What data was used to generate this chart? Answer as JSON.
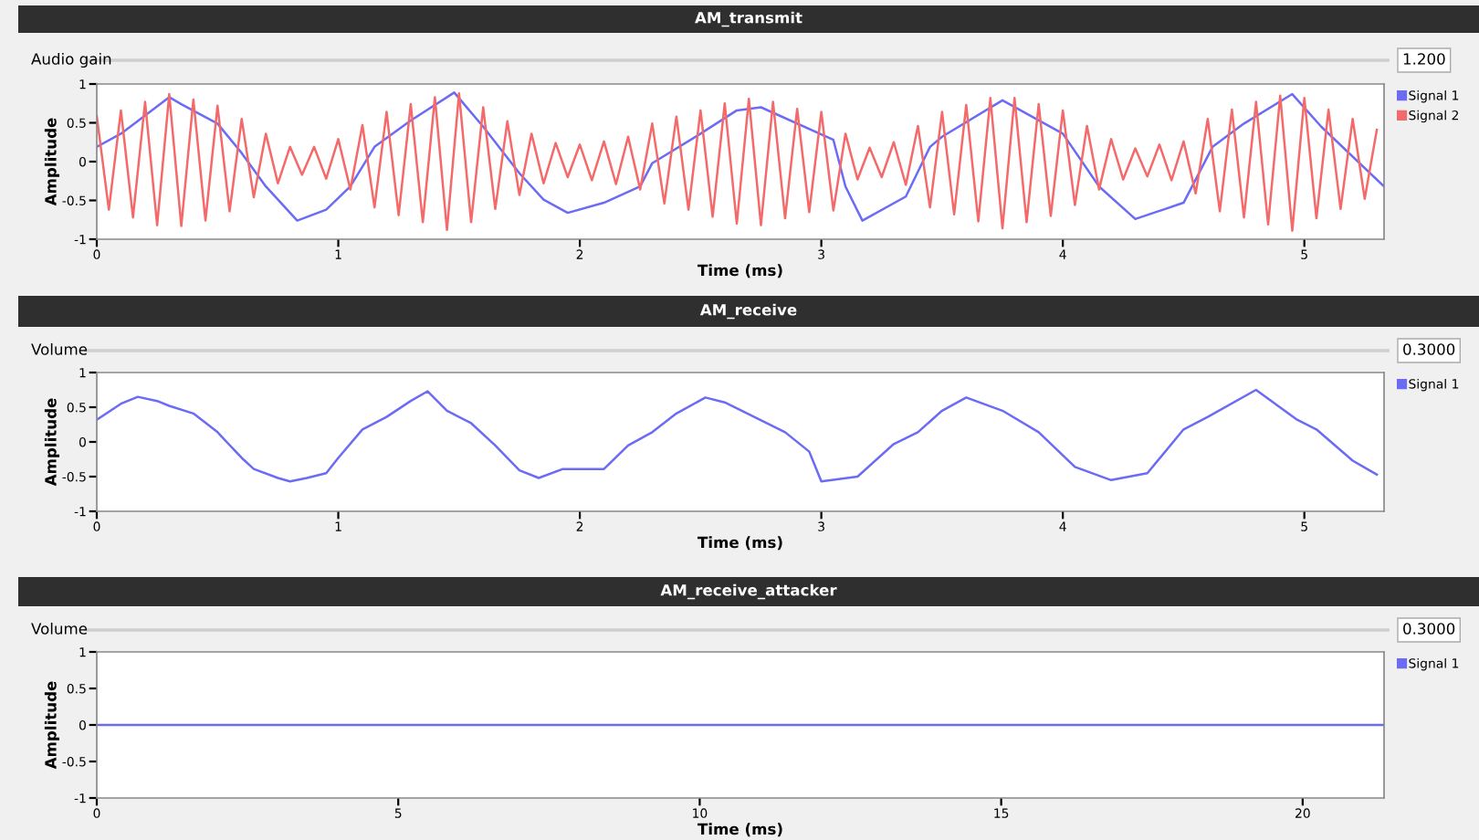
{
  "chart_data": [
    {
      "type": "line",
      "title": "AM_transmit",
      "xlabel": "Time (ms)",
      "ylabel": "Amplitude",
      "annotations": [
        "Audio gain",
        "1.200"
      ],
      "legend": "right",
      "xlim": [
        0,
        5.33
      ],
      "ylim": [
        -1,
        1
      ],
      "xticks": [
        0,
        1,
        2,
        3,
        4,
        5
      ],
      "yticks": [
        -1,
        -0.5,
        0,
        0.5,
        1
      ],
      "series": [
        {
          "name": "Signal 1",
          "color": "#6b6bf5",
          "x": [
            0,
            0.1,
            0.3,
            0.35,
            0.5,
            0.6,
            0.7,
            0.83,
            0.95,
            1.05,
            1.15,
            1.3,
            1.48,
            1.6,
            1.75,
            1.85,
            1.95,
            2.1,
            2.25,
            2.3,
            2.5,
            2.65,
            2.75,
            3.05,
            3.1,
            3.17,
            3.35,
            3.45,
            3.5,
            3.75,
            4.0,
            4.15,
            4.3,
            4.5,
            4.62,
            4.75,
            4.95,
            5.07,
            5.33
          ],
          "values": [
            0.19,
            0.36,
            0.83,
            0.74,
            0.49,
            0.11,
            -0.32,
            -0.76,
            -0.62,
            -0.32,
            0.19,
            0.53,
            0.89,
            0.45,
            -0.15,
            -0.49,
            -0.66,
            -0.53,
            -0.32,
            -0.02,
            0.36,
            0.66,
            0.7,
            0.28,
            -0.32,
            -0.76,
            -0.45,
            0.19,
            0.32,
            0.79,
            0.36,
            -0.32,
            -0.74,
            -0.53,
            0.19,
            0.49,
            0.87,
            0.45,
            -0.32
          ]
        },
        {
          "name": "Signal 2",
          "color": "#f46a6a",
          "x": [
            0,
            0.05,
            0.1,
            0.15,
            0.2,
            0.25,
            0.3,
            0.35,
            0.4,
            0.45,
            0.5,
            0.55,
            0.6,
            0.65,
            0.7,
            0.75,
            0.8,
            0.85,
            0.9,
            0.95,
            1.0,
            1.05,
            1.1,
            1.15,
            1.2,
            1.25,
            1.3,
            1.35,
            1.4,
            1.45,
            1.5,
            1.55,
            1.6,
            1.65,
            1.7,
            1.75,
            1.8,
            1.85,
            1.9,
            1.95,
            2.0,
            2.05,
            2.1,
            2.15,
            2.2,
            2.25,
            2.3,
            2.35,
            2.4,
            2.45,
            2.5,
            2.55,
            2.6,
            2.65,
            2.7,
            2.75,
            2.8,
            2.85,
            2.9,
            2.95,
            3.0,
            3.05,
            3.1,
            3.15,
            3.2,
            3.25,
            3.3,
            3.35,
            3.4,
            3.45,
            3.5,
            3.55,
            3.6,
            3.65,
            3.7,
            3.75,
            3.8,
            3.85,
            3.9,
            3.95,
            4.0,
            4.05,
            4.1,
            4.15,
            4.2,
            4.25,
            4.3,
            4.35,
            4.4,
            4.45,
            4.5,
            4.55,
            4.6,
            4.65,
            4.7,
            4.75,
            4.8,
            4.85,
            4.9,
            4.95,
            5.0,
            5.05,
            5.1,
            5.15,
            5.2,
            5.25,
            5.3
          ],
          "values": [
            0.59,
            -0.62,
            0.66,
            -0.72,
            0.77,
            -0.82,
            0.87,
            -0.83,
            0.8,
            -0.76,
            0.72,
            -0.64,
            0.55,
            -0.46,
            0.36,
            -0.28,
            0.19,
            -0.17,
            0.19,
            -0.22,
            0.29,
            -0.36,
            0.47,
            -0.59,
            0.64,
            -0.69,
            0.74,
            -0.78,
            0.83,
            -0.88,
            0.88,
            -0.78,
            0.7,
            -0.61,
            0.52,
            -0.43,
            0.36,
            -0.28,
            0.24,
            -0.2,
            0.22,
            -0.24,
            0.26,
            -0.29,
            0.32,
            -0.36,
            0.49,
            -0.54,
            0.58,
            -0.62,
            0.66,
            -0.71,
            0.75,
            -0.8,
            0.81,
            -0.82,
            0.77,
            -0.73,
            0.68,
            -0.65,
            0.64,
            -0.63,
            0.36,
            -0.23,
            0.18,
            -0.2,
            0.25,
            -0.3,
            0.46,
            -0.59,
            0.64,
            -0.68,
            0.73,
            -0.77,
            0.82,
            -0.86,
            0.82,
            -0.78,
            0.74,
            -0.7,
            0.66,
            -0.56,
            0.46,
            -0.36,
            0.29,
            -0.23,
            0.17,
            -0.19,
            0.22,
            -0.24,
            0.26,
            -0.41,
            0.55,
            -0.64,
            0.67,
            -0.72,
            0.77,
            -0.81,
            0.85,
            -0.89,
            0.82,
            -0.73,
            0.67,
            -0.61,
            0.55,
            -0.48,
            0.41
          ]
        }
      ]
    },
    {
      "type": "line",
      "title": "AM_receive",
      "xlabel": "Time (ms)",
      "ylabel": "Amplitude",
      "annotations": [
        "Volume",
        "0.3000"
      ],
      "legend": "right",
      "xlim": [
        0,
        5.33
      ],
      "ylim": [
        -1,
        1
      ],
      "xticks": [
        0,
        1,
        2,
        3,
        4,
        5
      ],
      "yticks": [
        -1,
        -0.5,
        0,
        0.5,
        1
      ],
      "series": [
        {
          "name": "Signal 1",
          "color": "#6b6bf5",
          "x": [
            0,
            0.1,
            0.17,
            0.25,
            0.3,
            0.4,
            0.5,
            0.6,
            0.65,
            0.75,
            0.8,
            0.87,
            0.95,
            1.0,
            1.1,
            1.2,
            1.3,
            1.37,
            1.45,
            1.55,
            1.65,
            1.75,
            1.83,
            1.93,
            2.0,
            2.1,
            2.2,
            2.3,
            2.4,
            2.52,
            2.6,
            2.85,
            2.95,
            3.0,
            3.15,
            3.3,
            3.4,
            3.5,
            3.6,
            3.75,
            3.9,
            4.05,
            4.2,
            4.35,
            4.5,
            4.6,
            4.8,
            4.97,
            5.05,
            5.2,
            5.3
          ],
          "values": [
            0.32,
            0.55,
            0.65,
            0.59,
            0.52,
            0.41,
            0.14,
            -0.23,
            -0.39,
            -0.52,
            -0.57,
            -0.52,
            -0.45,
            -0.23,
            0.18,
            0.36,
            0.59,
            0.73,
            0.45,
            0.27,
            -0.05,
            -0.41,
            -0.52,
            -0.39,
            -0.39,
            -0.39,
            -0.05,
            0.14,
            0.41,
            0.64,
            0.57,
            0.14,
            -0.14,
            -0.57,
            -0.5,
            -0.03,
            0.14,
            0.45,
            0.64,
            0.45,
            0.14,
            -0.36,
            -0.55,
            -0.45,
            0.18,
            0.36,
            0.75,
            0.32,
            0.18,
            -0.27,
            -0.47
          ]
        }
      ]
    },
    {
      "type": "line",
      "title": "AM_receive_attacker",
      "xlabel": "Time (ms)",
      "ylabel": "Amplitude",
      "annotations": [
        "Volume",
        "0.3000"
      ],
      "legend": "right",
      "xlim": [
        0,
        21.35
      ],
      "ylim": [
        -1,
        1
      ],
      "xticks": [
        0,
        5,
        10,
        15,
        20
      ],
      "yticks": [
        -1,
        -0.5,
        0,
        0.5,
        1
      ],
      "series": [
        {
          "name": "Signal 1",
          "color": "#6b6bf5",
          "x": [
            0,
            21.35
          ],
          "values": [
            0,
            0
          ]
        }
      ]
    }
  ]
}
